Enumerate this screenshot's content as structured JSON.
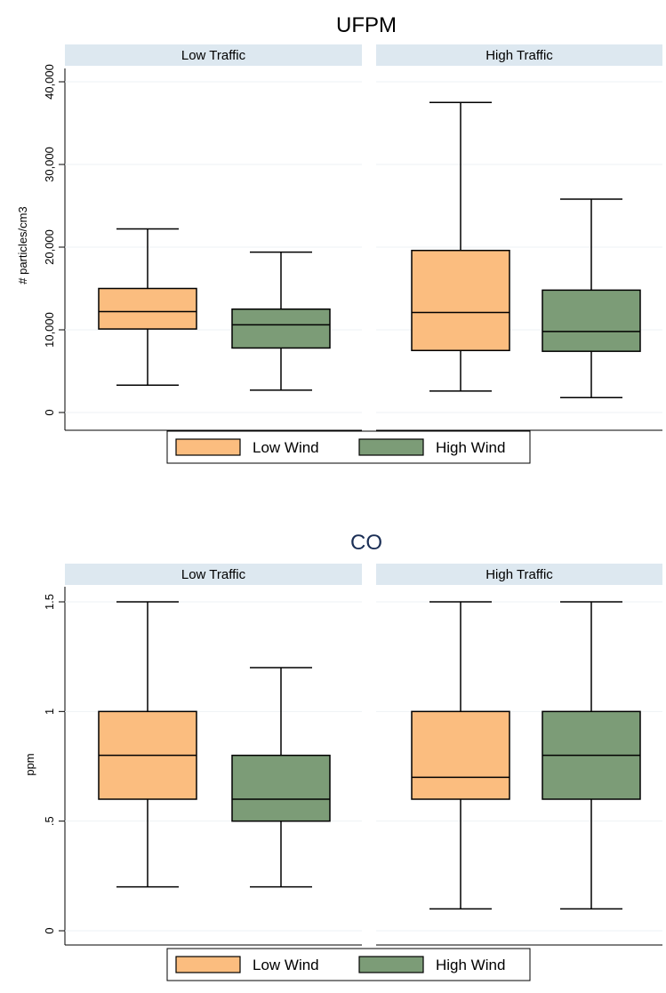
{
  "chart_data": [
    {
      "type": "boxplot",
      "title": "UFPM",
      "ylabel": "# particles/cm3",
      "ylim": [
        0,
        40000
      ],
      "yticks": [
        0,
        10000,
        20000,
        30000,
        40000
      ],
      "ytick_labels": [
        "0",
        "10,000",
        "20,000",
        "30,000",
        "40,000"
      ],
      "grid": true,
      "legend_position": "bottom",
      "legend": [
        "Low Wind",
        "High Wind"
      ],
      "panels": [
        {
          "label": "Low Traffic",
          "boxes": [
            {
              "series": "Low Wind",
              "min": 3300,
              "q1": 10100,
              "median": 12200,
              "q3": 15000,
              "max": 22200
            },
            {
              "series": "High Wind",
              "min": 2700,
              "q1": 7800,
              "median": 10600,
              "q3": 12500,
              "max": 19400
            }
          ]
        },
        {
          "label": "High Traffic",
          "boxes": [
            {
              "series": "Low Wind",
              "min": 2600,
              "q1": 7500,
              "median": 12100,
              "q3": 19600,
              "max": 37500
            },
            {
              "series": "High Wind",
              "min": 1800,
              "q1": 7400,
              "median": 9800,
              "q3": 14800,
              "max": 25800
            }
          ]
        }
      ]
    },
    {
      "type": "boxplot",
      "title": "CO",
      "ylabel": "ppm",
      "ylim": [
        0,
        1.5
      ],
      "yticks": [
        0,
        0.5,
        1,
        1.5
      ],
      "ytick_labels": [
        "0",
        ".5",
        "1",
        "1.5"
      ],
      "grid": true,
      "legend_position": "bottom",
      "legend": [
        "Low Wind",
        "High Wind"
      ],
      "panels": [
        {
          "label": "Low Traffic",
          "boxes": [
            {
              "series": "Low Wind",
              "min": 0.2,
              "q1": 0.6,
              "median": 0.8,
              "q3": 1.0,
              "max": 1.5
            },
            {
              "series": "High Wind",
              "min": 0.2,
              "q1": 0.5,
              "median": 0.6,
              "q3": 0.8,
              "max": 1.2
            }
          ]
        },
        {
          "label": "High Traffic",
          "boxes": [
            {
              "series": "Low Wind",
              "min": 0.1,
              "q1": 0.6,
              "median": 0.7,
              "q3": 1.0,
              "max": 1.5
            },
            {
              "series": "High Wind",
              "min": 0.1,
              "q1": 0.6,
              "median": 0.8,
              "q3": 1.0,
              "max": 1.5
            }
          ]
        }
      ]
    }
  ],
  "colors": {
    "Low Wind": "#fbbd7f",
    "High Wind": "#7c9c77",
    "panel_header": "#dde8f0",
    "title_ufpm": "#000000",
    "title_co": "#1a2e55",
    "grid": "#eef2f5"
  }
}
